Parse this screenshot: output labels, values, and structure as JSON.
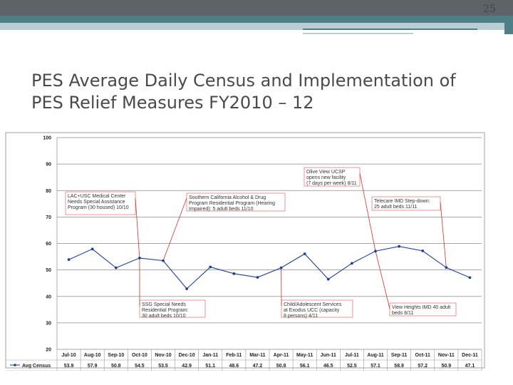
{
  "page_number": "25",
  "slide": {
    "title_line1": "PES Average Daily Census and Implementation of",
    "title_line2": "PES Relief Measures FY2010 – 12"
  },
  "colors": {
    "band_dark": "#5d6367",
    "band_teal": "#4e7f86",
    "band_light": "#b9cdd2",
    "series_line": "#1f3f99",
    "annotation_line": "#cc3333"
  },
  "chart_data": {
    "type": "line",
    "categories": [
      "Jul-10",
      "Aug-10",
      "Sep-10",
      "Oct-10",
      "Nov-10",
      "Dec-10",
      "Jan-11",
      "Feb-11",
      "Mar-11",
      "Apr-11",
      "May-11",
      "Jun-11",
      "Jul-11",
      "Aug-11",
      "Sep-11",
      "Oct-11",
      "Nov-11",
      "Dec-11"
    ],
    "series": [
      {
        "name": "Avg Census",
        "values": [
          53.9,
          57.9,
          50.8,
          54.5,
          53.5,
          42.9,
          51.1,
          48.6,
          47.2,
          50.8,
          56.1,
          46.5,
          52.5,
          57.1,
          58.9,
          57.2,
          50.9,
          47.1
        ]
      }
    ],
    "table_values": [
      "53.9",
      "57.9",
      "50.8",
      "54.5",
      "53.5",
      "42.9",
      "51.1",
      "48.6",
      "47.2",
      "50.8",
      "56.1",
      "46.5",
      "52.5",
      "57.1",
      "58.9",
      "57.2",
      "50.9",
      "47.1"
    ],
    "ylim": [
      20,
      100
    ],
    "yticks": [
      20,
      30,
      40,
      50,
      60,
      70,
      80,
      90,
      100
    ],
    "grid": true,
    "legend_position": "bottom-left data table",
    "annotations": [
      {
        "lines": [
          "LAC+USC Medical Center",
          "Needs Special Assistance",
          "Program (30 housed) 10/10"
        ],
        "category": "Oct-10"
      },
      {
        "lines": [
          "Southern California Alcohol & Drug",
          "Program Residential Program (Hearing",
          "Impaired): 5 adult beds 11/10"
        ],
        "category": "Nov-10"
      },
      {
        "lines": [
          "Olive View UCSP",
          "opens new facility",
          "(7 days per week) 8/11"
        ],
        "category": "Aug-11"
      },
      {
        "lines": [
          "Telecare IMD Step-down:",
          "25 adult beds 11/11"
        ],
        "category": "Nov-11"
      },
      {
        "lines": [
          "SSG Special Needs",
          "Residential Program:",
          "30 adult beds 10/10"
        ],
        "category": "Oct-10"
      },
      {
        "lines": [
          "Child/Adolescent Services",
          "at Exodus UCC (capacity",
          "8 persons) 4/11"
        ],
        "category": "Apr-11"
      },
      {
        "lines": [
          "View Heights IMD  40 adult",
          "beds 8/11"
        ],
        "category": "Aug-11"
      }
    ]
  }
}
